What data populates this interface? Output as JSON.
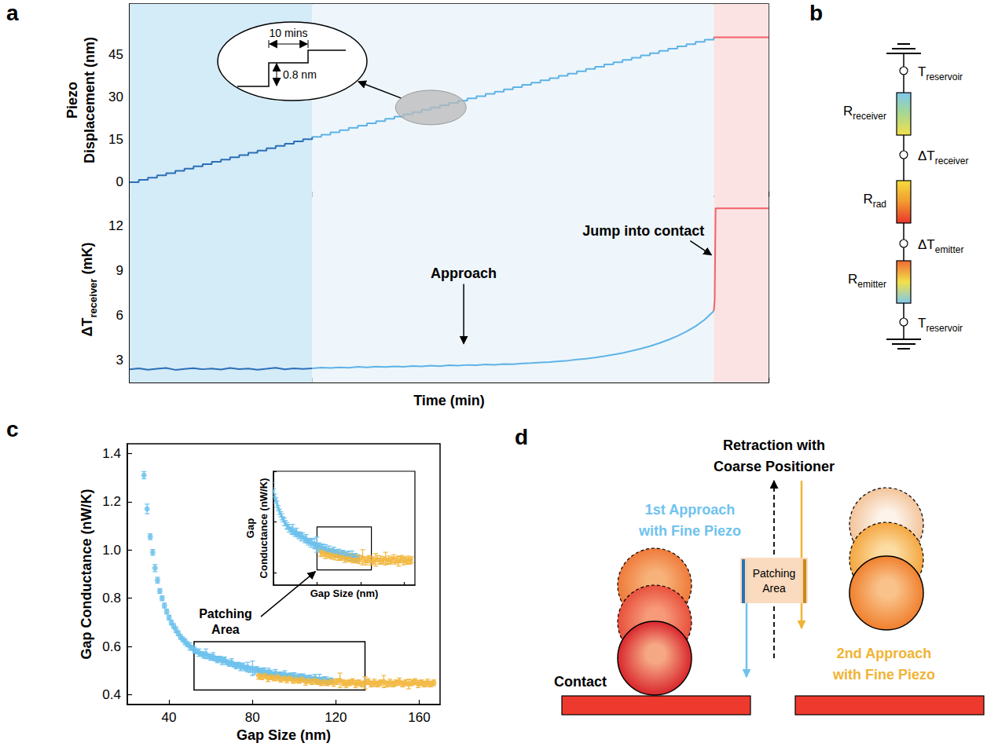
{
  "chart_data": [
    {
      "panel": "a",
      "type": "line",
      "ylabel": [
        "Piezo",
        "Displacement (nm)"
      ],
      "xlim": [
        0,
        700
      ],
      "xticks": [
        0,
        50,
        100,
        150,
        200,
        250,
        300,
        350,
        400,
        450,
        500,
        550,
        600,
        650,
        700
      ],
      "ylim": [
        -5,
        63
      ],
      "yticks": [
        0,
        15,
        30,
        45
      ],
      "tick_labels": "y",
      "grid": false,
      "shaded_regions": [
        {
          "xlim": [
            0,
            200
          ],
          "color": "#d4ebf8"
        },
        {
          "xlim": [
            200,
            640
          ],
          "color": "#eef6fb"
        },
        {
          "xlim": [
            640,
            700
          ],
          "color": "#fbe3e3"
        }
      ],
      "series": [
        {
          "color": "#2b6fb6",
          "line_style": "step",
          "x": [
            0,
            10,
            20,
            30,
            40,
            50,
            60,
            70,
            80,
            90,
            100,
            110,
            120,
            130,
            140,
            150,
            160,
            170,
            180,
            190,
            200
          ],
          "values": [
            0,
            0.8,
            1.6,
            2.4,
            3.2,
            4.0,
            4.8,
            5.6,
            6.4,
            7.2,
            8.0,
            8.8,
            9.6,
            10.4,
            11.2,
            12.0,
            12.8,
            13.6,
            14.4,
            15.2,
            16.0
          ]
        },
        {
          "color": "#5fb3e6",
          "line_style": "step",
          "x": [
            200,
            210,
            220,
            230,
            240,
            250,
            260,
            270,
            280,
            290,
            300,
            310,
            320,
            330,
            340,
            350,
            360,
            370,
            380,
            390,
            400,
            410,
            420,
            430,
            440,
            450,
            460,
            470,
            480,
            490,
            500,
            510,
            520,
            530,
            540,
            550,
            560,
            570,
            580,
            590,
            600,
            610,
            620,
            630,
            640
          ],
          "values": [
            16.0,
            16.8,
            17.6,
            18.4,
            19.2,
            20.0,
            20.8,
            21.6,
            22.4,
            23.2,
            24.0,
            24.8,
            25.6,
            26.4,
            27.2,
            28.0,
            28.8,
            29.6,
            30.4,
            31.2,
            32.0,
            32.8,
            33.6,
            34.4,
            35.2,
            36.0,
            36.8,
            37.6,
            38.4,
            39.2,
            40.0,
            40.8,
            41.6,
            42.4,
            43.2,
            44.0,
            44.8,
            45.6,
            46.4,
            47.2,
            48.0,
            48.8,
            49.6,
            50.4,
            51.2
          ]
        },
        {
          "color": "#f2606a",
          "line_style": "solid",
          "x": [
            640,
            700
          ],
          "values": [
            51.2,
            51.2
          ]
        }
      ],
      "inset": {
        "step_time_label": "10 mins",
        "step_height_label": "0.8 nm",
        "zoom_at": {
          "x": 330,
          "y": 26.4
        }
      }
    },
    {
      "panel": "a",
      "type": "line",
      "xlabel": "Time (min)",
      "ylabel": {
        "base": "ΔT",
        "sub": "receiver",
        "rest": " (mK)"
      },
      "xlim": [
        0,
        700
      ],
      "xticks": [
        0,
        50,
        100,
        150,
        200,
        250,
        300,
        350,
        400,
        450,
        500,
        550,
        600,
        650,
        700
      ],
      "ylim": [
        1.5,
        14
      ],
      "yticks": [
        3,
        6,
        9,
        12
      ],
      "tick_labels": "y",
      "grid": false,
      "shaded_regions": [
        {
          "xlim": [
            0,
            200
          ],
          "color": "#d4ebf8"
        },
        {
          "xlim": [
            200,
            640
          ],
          "color": "#eef6fb"
        },
        {
          "xlim": [
            640,
            700
          ],
          "color": "#fbe3e3"
        }
      ],
      "series": [
        {
          "color": "#2b6fb6",
          "line_style": "solid",
          "x": [
            0,
            10,
            20,
            30,
            40,
            50,
            60,
            70,
            80,
            90,
            100,
            110,
            120,
            130,
            140,
            150,
            160,
            170,
            180,
            190,
            200
          ],
          "values": [
            2.38,
            2.45,
            2.36,
            2.42,
            2.48,
            2.35,
            2.41,
            2.46,
            2.39,
            2.43,
            2.37,
            2.47,
            2.4,
            2.44,
            2.36,
            2.42,
            2.49,
            2.38,
            2.45,
            2.41,
            2.45
          ]
        },
        {
          "color": "#5fb3e6",
          "line_style": "solid",
          "x": [
            200,
            210,
            220,
            230,
            240,
            250,
            260,
            270,
            280,
            290,
            300,
            310,
            320,
            330,
            340,
            350,
            360,
            370,
            380,
            390,
            400,
            410,
            420,
            430,
            440,
            450,
            460,
            470,
            480,
            490,
            500,
            510,
            520,
            530,
            540,
            550,
            560,
            570,
            580,
            590,
            600,
            610,
            620,
            630,
            640
          ],
          "values": [
            2.45,
            2.5,
            2.47,
            2.52,
            2.49,
            2.55,
            2.51,
            2.57,
            2.54,
            2.58,
            2.56,
            2.61,
            2.58,
            2.63,
            2.6,
            2.66,
            2.63,
            2.68,
            2.66,
            2.71,
            2.69,
            2.74,
            2.72,
            2.78,
            2.8,
            2.84,
            2.87,
            2.93,
            2.97,
            3.04,
            3.1,
            3.18,
            3.27,
            3.37,
            3.48,
            3.62,
            3.77,
            3.94,
            4.14,
            4.36,
            4.62,
            4.92,
            5.28,
            5.72,
            6.3
          ]
        },
        {
          "color": "#f2606a",
          "line_style": "solid",
          "x": [
            640,
            641,
            642,
            700
          ],
          "values": [
            6.3,
            7.0,
            13.2,
            13.2
          ]
        }
      ],
      "annotations": [
        {
          "text": "Approach",
          "x": 366,
          "y": 4.0
        },
        {
          "text": "Jump into contact",
          "x": 640,
          "y": 9.9
        }
      ]
    },
    {
      "panel": "c",
      "type": "scatter",
      "xlabel": "Gap Size (nm)",
      "ylabel": "Gap Conductance (nW/K)",
      "xlim": [
        20,
        170
      ],
      "xticks": [
        40,
        80,
        120,
        160
      ],
      "ylim": [
        0.36,
        1.44
      ],
      "yticks": [
        0.4,
        0.6,
        0.8,
        {
          "value": 1,
          "label": "1.0"
        },
        1.2,
        1.4
      ],
      "grid": false,
      "series": [
        {
          "color": "#6cc0ec",
          "marker": "circle",
          "x": [
            28,
            29.5,
            31,
            32.2,
            33.3,
            34.5,
            35.6,
            36.7,
            37.8,
            38.9,
            40,
            41.1,
            42.2,
            43.3,
            44.4,
            45.5,
            46.6,
            47.7,
            48.8,
            50,
            51.1,
            52.2,
            53.3,
            54.4,
            55.5,
            56.6,
            57.7,
            58.8,
            60,
            61.1,
            62.2,
            63.3,
            64.4,
            65.5,
            66.6,
            67.7,
            68.8,
            70,
            71.1,
            72.2,
            73.3,
            74.4,
            75.5,
            76.6,
            77.7,
            78.8,
            80,
            81.1,
            82.2,
            83.3,
            84.4,
            85.5,
            86.6,
            87.7,
            88.8,
            90,
            91.1,
            92.2,
            93.3,
            94.4,
            95.5,
            96.6,
            97.7,
            98.8,
            100,
            101.1,
            102.2,
            103.3,
            104.4,
            105.5,
            106.6,
            107.7,
            108.8,
            110,
            111.1,
            112.2,
            113.3,
            114.4,
            115.5,
            116.6,
            117.7
          ],
          "values": [
            1.31,
            1.17,
            1.055,
            0.99,
            0.925,
            0.875,
            0.83,
            0.8,
            0.77,
            0.745,
            0.72,
            0.7,
            0.685,
            0.67,
            0.655,
            0.64,
            0.63,
            0.62,
            0.61,
            0.6,
            0.595,
            0.585,
            0.58,
            0.575,
            0.57,
            0.565,
            0.57,
            0.56,
            0.555,
            0.56,
            0.55,
            0.545,
            0.55,
            0.54,
            0.545,
            0.535,
            0.53,
            0.535,
            0.525,
            0.52,
            0.525,
            0.515,
            0.52,
            0.51,
            0.515,
            0.505,
            0.51,
            0.5,
            0.505,
            0.5,
            0.495,
            0.5,
            0.49,
            0.495,
            0.49,
            0.485,
            0.49,
            0.48,
            0.485,
            0.48,
            0.485,
            0.475,
            0.48,
            0.475,
            0.48,
            0.47,
            0.475,
            0.47,
            0.475,
            0.47,
            0.465,
            0.47,
            0.465,
            0.47,
            0.46,
            0.465,
            0.46,
            0.465,
            0.46,
            0.455,
            0.46
          ],
          "errors": [
            0.015,
            0.02,
            0.012,
            0.012,
            0.015,
            0.012,
            0.01,
            0.01,
            0.01,
            0.01,
            0.01,
            0.01,
            0.01,
            0.012,
            0.01,
            0.01,
            0.01,
            0.012,
            0.01,
            0.015,
            0.01,
            0.012,
            0.01,
            0.015,
            0.01,
            0.012,
            0.02,
            0.01,
            0.012,
            0.015,
            0.01,
            0.012,
            0.01,
            0.015,
            0.012,
            0.01,
            0.012,
            0.015,
            0.01,
            0.012,
            0.01,
            0.015,
            0.012,
            0.01,
            0.02,
            0.012,
            0.03,
            0.015,
            0.012,
            0.01,
            0.015,
            0.012,
            0.01,
            0.015,
            0.012,
            0.01,
            0.015,
            0.012,
            0.01,
            0.012,
            0.015,
            0.012,
            0.01,
            0.015,
            0.012,
            0.01,
            0.012,
            0.015,
            0.012,
            0.01,
            0.015,
            0.012,
            0.01,
            0.015,
            0.012,
            0.02,
            0.012,
            0.01,
            0.015,
            0.012,
            0.01
          ]
        },
        {
          "color": "#f2b63c",
          "marker": "circle",
          "x": [
            83,
            84.5,
            86,
            87.5,
            89,
            90.5,
            92,
            93.5,
            95,
            96.5,
            98,
            99.5,
            101,
            102.5,
            104,
            105.5,
            107,
            108.5,
            110,
            111.5,
            113,
            114.5,
            116,
            117.5,
            119,
            120.5,
            122,
            123.5,
            125,
            126.5,
            128,
            129.5,
            131,
            132.5,
            134,
            135.5,
            137,
            138.5,
            140,
            141.5,
            143,
            144.5,
            146,
            147.5,
            149,
            150.5,
            152,
            153.5,
            155,
            156.5,
            158,
            159.5,
            161,
            162.5,
            164,
            165.5,
            167
          ],
          "values": [
            0.48,
            0.475,
            0.48,
            0.47,
            0.475,
            0.47,
            0.475,
            0.465,
            0.47,
            0.465,
            0.47,
            0.46,
            0.465,
            0.46,
            0.465,
            0.455,
            0.46,
            0.455,
            0.46,
            0.455,
            0.45,
            0.455,
            0.45,
            0.455,
            0.45,
            0.455,
            0.46,
            0.45,
            0.445,
            0.45,
            0.455,
            0.445,
            0.45,
            0.445,
            0.45,
            0.455,
            0.445,
            0.45,
            0.445,
            0.45,
            0.455,
            0.445,
            0.45,
            0.445,
            0.45,
            0.455,
            0.445,
            0.45,
            0.445,
            0.45,
            0.455,
            0.445,
            0.45,
            0.445,
            0.45,
            0.445,
            0.45
          ],
          "errors": [
            0.015,
            0.012,
            0.012,
            0.015,
            0.012,
            0.012,
            0.015,
            0.012,
            0.012,
            0.015,
            0.012,
            0.012,
            0.015,
            0.012,
            0.012,
            0.015,
            0.012,
            0.012,
            0.015,
            0.012,
            0.012,
            0.015,
            0.012,
            0.012,
            0.015,
            0.012,
            0.03,
            0.012,
            0.015,
            0.012,
            0.012,
            0.015,
            0.012,
            0.012,
            0.025,
            0.012,
            0.012,
            0.015,
            0.012,
            0.012,
            0.025,
            0.012,
            0.015,
            0.012,
            0.012,
            0.015,
            0.012,
            0.012,
            0.02,
            0.012,
            0.012,
            0.015,
            0.012,
            0.012,
            0.015,
            0.012,
            0.012
          ]
        }
      ],
      "highlight_box": {
        "label": [
          "Patching",
          "Area"
        ],
        "xlim": [
          52,
          134
        ],
        "ylim": [
          0.42,
          0.62
        ]
      },
      "inset": {
        "xlabel": "Gap Size (nm)",
        "ylabel": [
          "Gap",
          "Conductance (nW/K)"
        ],
        "xlim": [
          40,
          170
        ],
        "xticks": [
          40,
          80,
          120,
          160
        ],
        "ylim": [
          0.35,
          0.8
        ],
        "yticks": [
          0.4,
          0.6,
          0.8
        ],
        "tick_labels": false,
        "box": {
          "xlim": [
            80,
            130
          ],
          "ylim": [
            0.41,
            0.58
          ]
        }
      }
    }
  ],
  "diagrams": {
    "circuit": {
      "panel": "b",
      "nodes": [
        {
          "base": "T",
          "sub": "reservoir"
        },
        {
          "base": "ΔT",
          "sub": "receiver"
        },
        {
          "base": "ΔT",
          "sub": "emitter"
        },
        {
          "base": "T",
          "sub": "reservoir"
        }
      ],
      "resistors": [
        {
          "base": "R",
          "sub": "receiver",
          "colors": [
            "#7ec8ec",
            "#a8d890",
            "#f3e04a"
          ]
        },
        {
          "base": "R",
          "sub": "rad",
          "colors": [
            "#f5dc3c",
            "#f29a30",
            "#e8352c"
          ]
        },
        {
          "base": "R",
          "sub": "emitter",
          "colors": [
            "#ef6a35",
            "#f3e04a",
            "#7ec8ec"
          ]
        }
      ]
    },
    "procedure": {
      "panel": "d",
      "retraction": [
        "Retraction with",
        "Coarse Positioner"
      ],
      "first_approach": {
        "lines": [
          "1st Approach",
          "with Fine Piezo"
        ],
        "color": "#6ec3ee"
      },
      "second_approach": {
        "lines": [
          "2nd Approach",
          "with Fine Piezo"
        ],
        "color": "#f0b435"
      },
      "patching": [
        "Patching",
        "Area"
      ],
      "contact": "Contact"
    }
  }
}
